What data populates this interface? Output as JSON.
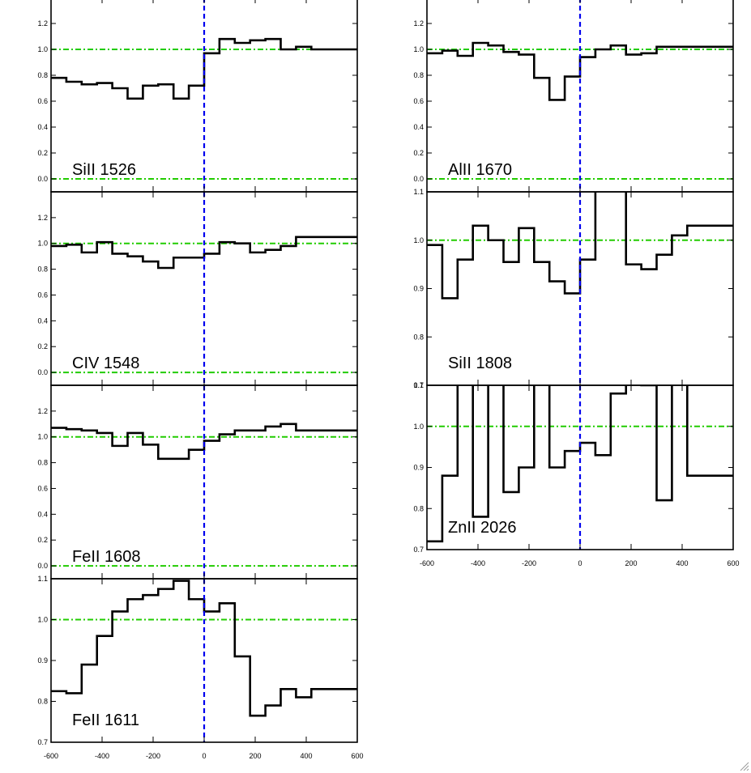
{
  "chart_data": {
    "type": "line",
    "style": "step",
    "xlim": [
      -600,
      600
    ],
    "x_ticks": [
      -600,
      -400,
      -200,
      0,
      200,
      400,
      600
    ],
    "x_tick_labels": [
      "-600",
      "-400",
      "-200",
      "0",
      "200",
      "400",
      "600"
    ],
    "reference_x": 0,
    "colors": {
      "spectrum": "#000000",
      "velocity_zero": "#0000ee",
      "continuum": "#22cc00",
      "axes": "#000000"
    },
    "bin_edges": [
      -600,
      -540,
      -480,
      -420,
      -360,
      -300,
      -240,
      -180,
      -120,
      -60,
      0,
      60,
      120,
      180,
      240,
      300,
      360,
      420,
      480,
      540,
      600
    ],
    "panels": [
      {
        "label": "SiII 1526",
        "ylim": [
          -0.1,
          1.4
        ],
        "y_ticks": [
          0.0,
          0.2,
          0.4,
          0.6,
          0.8,
          1.0,
          1.2
        ],
        "y_tick_labels": [
          "0.0",
          "0.2",
          "0.4",
          "0.6",
          "0.8",
          "1.0",
          "1.2"
        ],
        "reference_lines": [
          1.0,
          0.0
        ],
        "values": [
          0.78,
          0.75,
          0.73,
          0.74,
          0.7,
          0.62,
          0.72,
          0.73,
          0.62,
          0.72,
          0.97,
          1.08,
          1.05,
          1.07,
          1.08,
          1.0,
          1.02,
          1.0,
          1.0,
          1.0
        ]
      },
      {
        "label": "CIV 1548",
        "ylim": [
          -0.1,
          1.4
        ],
        "y_ticks": [
          0.0,
          0.2,
          0.4,
          0.6,
          0.8,
          1.0,
          1.2
        ],
        "y_tick_labels": [
          "0.0",
          "0.2",
          "0.4",
          "0.6",
          "0.8",
          "1.0",
          "1.2"
        ],
        "reference_lines": [
          1.0,
          0.0
        ],
        "values": [
          0.98,
          0.99,
          0.93,
          1.01,
          0.92,
          0.9,
          0.86,
          0.81,
          0.89,
          0.89,
          0.92,
          1.01,
          1.0,
          0.93,
          0.95,
          0.98,
          1.05,
          1.05,
          1.05,
          1.05
        ]
      },
      {
        "label": "FeII 1608",
        "ylim": [
          -0.1,
          1.4
        ],
        "y_ticks": [
          0.0,
          0.2,
          0.4,
          0.6,
          0.8,
          1.0,
          1.2
        ],
        "y_tick_labels": [
          "0.0",
          "0.2",
          "0.4",
          "0.6",
          "0.8",
          "1.0",
          "1.2"
        ],
        "reference_lines": [
          1.0,
          0.0
        ],
        "values": [
          1.07,
          1.06,
          1.05,
          1.03,
          0.93,
          1.03,
          0.94,
          0.83,
          0.83,
          0.9,
          0.97,
          1.02,
          1.05,
          1.05,
          1.08,
          1.1,
          1.05,
          1.05,
          1.05,
          1.05
        ]
      },
      {
        "label": "FeII 1611",
        "ylim": [
          0.7,
          1.1
        ],
        "y_ticks": [
          0.7,
          0.8,
          0.9,
          1.0,
          1.1
        ],
        "y_tick_labels": [
          "0.7",
          "0.8",
          "0.9",
          "1.0",
          "1.1"
        ],
        "reference_lines": [
          1.0
        ],
        "values": [
          0.825,
          0.82,
          0.89,
          0.96,
          1.02,
          1.05,
          1.06,
          1.075,
          1.095,
          1.05,
          1.02,
          1.04,
          0.91,
          0.765,
          0.79,
          0.83,
          0.81,
          0.83,
          0.83,
          0.83
        ]
      },
      {
        "label": "AlII 1670",
        "ylim": [
          -0.1,
          1.4
        ],
        "y_ticks": [
          0.0,
          0.2,
          0.4,
          0.6,
          0.8,
          1.0,
          1.2
        ],
        "y_tick_labels": [
          "0.0",
          "0.2",
          "0.4",
          "0.6",
          "0.8",
          "1.0",
          "1.2"
        ],
        "reference_lines": [
          1.0,
          0.0
        ],
        "values": [
          0.97,
          0.99,
          0.95,
          1.05,
          1.03,
          0.98,
          0.96,
          0.78,
          0.61,
          0.79,
          0.94,
          1.0,
          1.03,
          0.96,
          0.97,
          1.02,
          1.02,
          1.02,
          1.02,
          1.02
        ]
      },
      {
        "label": "SiII 1808",
        "ylim": [
          0.7,
          1.1
        ],
        "y_ticks": [
          0.7,
          0.8,
          0.9,
          1.0,
          1.1
        ],
        "y_tick_labels": [
          "0.7",
          "0.8",
          "0.9",
          "1.0",
          "1.1"
        ],
        "reference_lines": [
          1.0
        ],
        "values": [
          0.99,
          0.88,
          0.96,
          1.03,
          1.0,
          0.955,
          1.025,
          0.955,
          0.915,
          0.89,
          0.96,
          1.12,
          1.12,
          0.95,
          0.94,
          0.97,
          1.01,
          1.03,
          1.03,
          1.03
        ]
      },
      {
        "label": "ZnII 2026",
        "ylim": [
          0.7,
          1.1
        ],
        "y_ticks": [
          0.7,
          0.8,
          0.9,
          1.0,
          1.1
        ],
        "y_tick_labels": [
          "0.7",
          "0.8",
          "0.9",
          "1.0",
          "1.1"
        ],
        "reference_lines": [
          1.0
        ],
        "values": [
          0.72,
          0.88,
          1.12,
          0.78,
          1.12,
          0.84,
          0.9,
          1.12,
          0.9,
          0.94,
          0.96,
          0.93,
          1.08,
          1.12,
          1.1,
          0.82,
          1.12,
          0.88,
          0.88,
          0.88
        ]
      }
    ]
  }
}
